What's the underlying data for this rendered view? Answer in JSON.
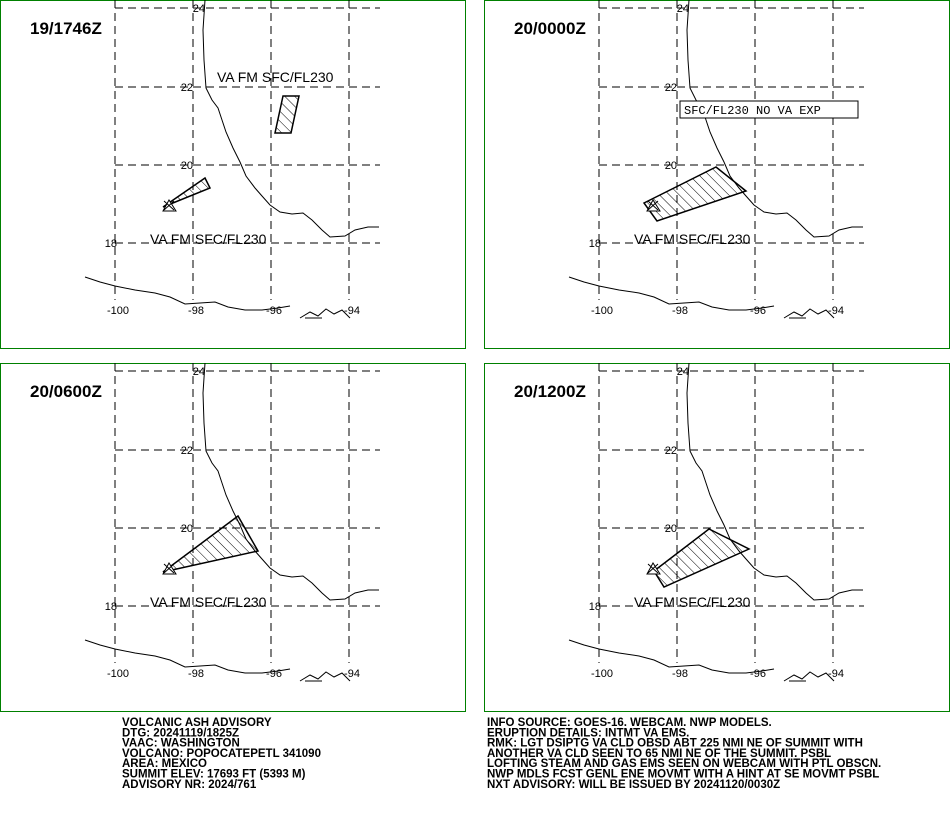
{
  "panels": [
    {
      "time": "19/1746Z",
      "labels": [
        "VA FM SFC/FL230",
        "VA FM SFC/FL230"
      ]
    },
    {
      "time": "20/0000Z",
      "labels": [
        "SFC/FL230 NO VA EXP",
        "VA FM SFC/FL230"
      ]
    },
    {
      "time": "20/0600Z",
      "labels": [
        "VA FM SFC/FL230"
      ]
    },
    {
      "time": "20/1200Z",
      "labels": [
        "VA FM SFC/FL230"
      ]
    }
  ],
  "lat_labels": [
    "24",
    "22",
    "20",
    "18"
  ],
  "lon_labels": [
    "-100",
    "-98",
    "-96",
    "-94"
  ],
  "advisory_left": [
    "VOLCANIC ASH ADVISORY",
    "DTG: 20241119/1825Z",
    "VAAC: WASHINGTON",
    "VOLCANO: POPOCATEPETL 341090",
    "AREA: MEXICO",
    "SUMMIT ELEV: 17693 FT (5393 M)",
    "ADVISORY NR: 2024/761"
  ],
  "advisory_right": [
    "INFO SOURCE: GOES-16. WEBCAM. NWP MODELS.",
    "ERUPTION DETAILS: INTMT VA EMS.",
    "RMK: LGT DSIPTG VA CLD OBSD ABT 225 NMI NE OF SUMMIT WITH",
    "ANOTHER VA CLD SEEN TO 65 NMI NE OF THE SUMMIT. PSBL",
    "LOFTING STEAM AND GAS EMS SEEN ON WEBCAM WITH PTL OBSCN.",
    "NWP MDLS FCST GENL ENE MOVMT WITH A HINT AT SE MOVMT PSBL",
    "NXT ADVISORY: WILL BE ISSUED BY 20241120/0030Z"
  ]
}
